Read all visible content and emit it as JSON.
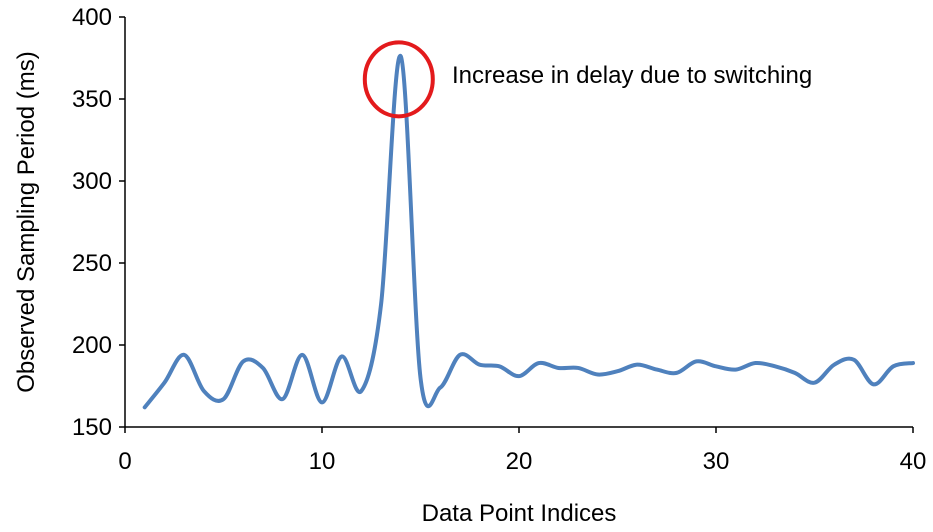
{
  "chart_data": {
    "type": "line",
    "title": "",
    "xlabel": "Data Point Indices",
    "ylabel": "Observed Sampling Period (ms)",
    "xlim": [
      0,
      40
    ],
    "ylim": [
      150,
      400
    ],
    "xticks": [
      0,
      10,
      20,
      30,
      40
    ],
    "yticks": [
      150,
      200,
      250,
      300,
      350,
      400
    ],
    "grid": false,
    "legend": "none",
    "series": [
      {
        "color": "#4F81BD",
        "smooth": true,
        "points": [
          [
            1,
            162
          ],
          [
            2,
            177
          ],
          [
            3,
            194
          ],
          [
            4,
            172
          ],
          [
            5,
            167
          ],
          [
            6,
            190
          ],
          [
            7,
            186
          ],
          [
            8,
            167
          ],
          [
            9,
            194
          ],
          [
            10,
            165
          ],
          [
            11,
            193
          ],
          [
            12,
            172
          ],
          [
            13,
            225
          ],
          [
            14,
            376
          ],
          [
            15,
            180
          ],
          [
            16,
            174
          ],
          [
            17,
            194
          ],
          [
            18,
            188
          ],
          [
            19,
            187
          ],
          [
            20,
            181
          ],
          [
            21,
            189
          ],
          [
            22,
            186
          ],
          [
            23,
            186
          ],
          [
            24,
            182
          ],
          [
            25,
            184
          ],
          [
            26,
            188
          ],
          [
            27,
            185
          ],
          [
            28,
            183
          ],
          [
            29,
            190
          ],
          [
            30,
            187
          ],
          [
            31,
            185
          ],
          [
            32,
            189
          ],
          [
            33,
            187
          ],
          [
            34,
            183
          ],
          [
            35,
            177
          ],
          [
            36,
            188
          ],
          [
            37,
            191
          ],
          [
            38,
            176
          ],
          [
            39,
            187
          ],
          [
            40,
            189
          ]
        ]
      }
    ],
    "annotations": [
      {
        "type": "circle",
        "target_x": 14,
        "target_y": 362,
        "color": "#E31A1C",
        "text": "Increase in delay due to switching"
      }
    ]
  }
}
